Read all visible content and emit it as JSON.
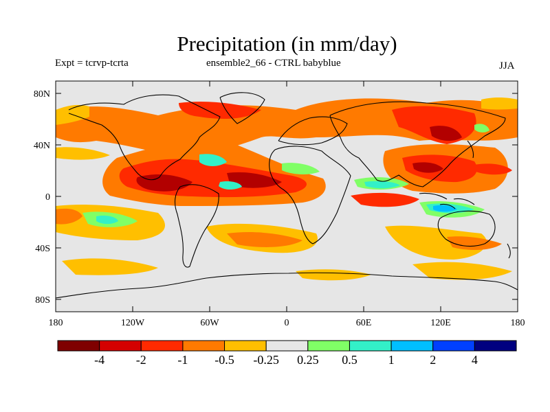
{
  "figure": {
    "title": "Precipitation (in mm/day)",
    "left_label": "Expt = tcrvp-tcrta",
    "center_label": "ensemble2_66 - CTRL babyblue",
    "season_label": "JJA"
  },
  "axes": {
    "lat_ticks": [
      "80N",
      "40N",
      "0",
      "40S",
      "80S"
    ],
    "lon_ticks": [
      "180",
      "120W",
      "60W",
      "0",
      "60E",
      "120E",
      "180"
    ]
  },
  "colorbar": {
    "labels": [
      "-4",
      "-2",
      "-1",
      "-0.5",
      "-0.25",
      "0.25",
      "0.5",
      "1",
      "2",
      "4"
    ],
    "colors": [
      "#7f0000",
      "#d40000",
      "#ff2a00",
      "#ff7a00",
      "#ffbf00",
      "#e6e6e6",
      "#80ff66",
      "#33f0c8",
      "#00bfff",
      "#0040ff",
      "#000080"
    ]
  },
  "palette": {
    "background": "#e6e6e6",
    "darkred": "#b20000",
    "red": "#ff2a00",
    "orange": "#ff7a00",
    "amber": "#ffbf00",
    "green": "#80ff66",
    "cyan": "#33f0c8",
    "lightblue": "#00bfff",
    "coast": "#000000"
  }
}
